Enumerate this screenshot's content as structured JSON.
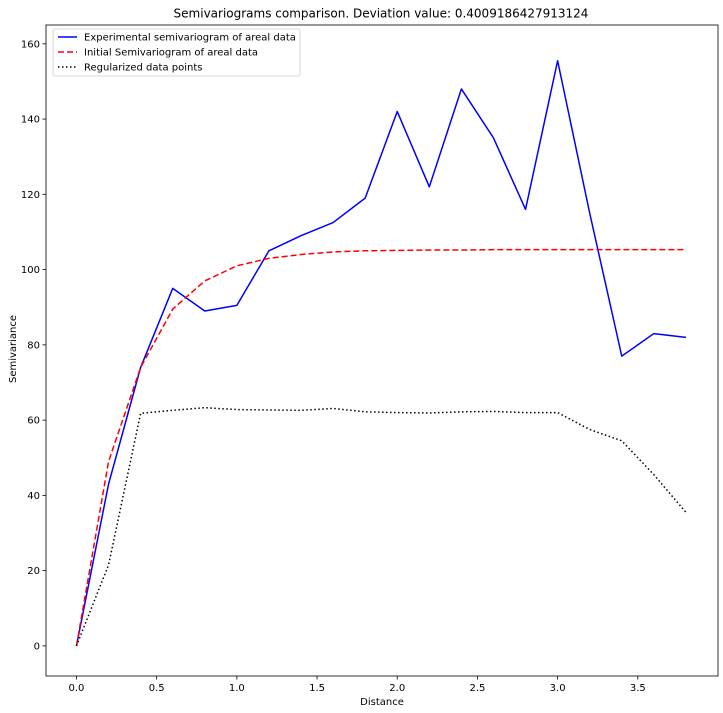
{
  "chart_data": {
    "type": "line",
    "title": "Semivariograms comparison. Deviation value: 0.4009186427913124",
    "xlabel": "Distance",
    "ylabel": "Semivariance",
    "xlim": [
      -0.19,
      4.0
    ],
    "ylim": [
      -8,
      165
    ],
    "xticks": [
      0.0,
      0.5,
      1.0,
      1.5,
      2.0,
      2.5,
      3.0,
      3.5
    ],
    "xtick_labels": [
      "0.0",
      "0.5",
      "1.0",
      "1.5",
      "2.0",
      "2.5",
      "3.0",
      "3.5"
    ],
    "yticks": [
      0,
      20,
      40,
      60,
      80,
      100,
      120,
      140,
      160
    ],
    "ytick_labels": [
      "0",
      "20",
      "40",
      "60",
      "80",
      "100",
      "120",
      "140",
      "160"
    ],
    "grid": false,
    "legend_position": "top-left",
    "series": [
      {
        "name": "Experimental semivariogram of areal data",
        "color": "#0000ff",
        "style": "solid",
        "x": [
          0.0,
          0.2,
          0.4,
          0.6,
          0.8,
          1.0,
          1.2,
          1.4,
          1.6,
          1.8,
          2.0,
          2.2,
          2.4,
          2.6,
          2.8,
          3.0,
          3.2,
          3.4,
          3.6,
          3.8
        ],
        "values": [
          0,
          43,
          74,
          95,
          89,
          90.5,
          105,
          109,
          112.5,
          119,
          142,
          122,
          148,
          135,
          116,
          155.5,
          115,
          77,
          83,
          82
        ]
      },
      {
        "name": "Initial Semivariogram of areal data",
        "color": "#ff0000",
        "style": "dashed",
        "x": [
          0.0,
          0.2,
          0.4,
          0.6,
          0.8,
          1.0,
          1.2,
          1.4,
          1.6,
          1.8,
          2.0,
          2.2,
          2.4,
          2.6,
          2.8,
          3.0,
          3.2,
          3.4,
          3.6,
          3.8
        ],
        "values": [
          0,
          49,
          74,
          89.5,
          97,
          101,
          103,
          104,
          104.7,
          105,
          105.1,
          105.2,
          105.2,
          105.3,
          105.3,
          105.3,
          105.3,
          105.3,
          105.3,
          105.3
        ]
      },
      {
        "name": "Regularized data points",
        "color": "#000000",
        "style": "dotted",
        "x": [
          0.0,
          0.2,
          0.4,
          0.6,
          0.8,
          1.0,
          1.2,
          1.4,
          1.6,
          1.8,
          2.0,
          2.2,
          2.4,
          2.6,
          2.8,
          3.0,
          3.2,
          3.4,
          3.6,
          3.8
        ],
        "values": [
          0,
          21.5,
          61.8,
          62.6,
          63.3,
          62.8,
          62.7,
          62.6,
          63.1,
          62.2,
          62,
          61.9,
          62.2,
          62.3,
          62,
          62,
          57.5,
          54.5,
          45.5,
          35.5
        ]
      }
    ]
  }
}
